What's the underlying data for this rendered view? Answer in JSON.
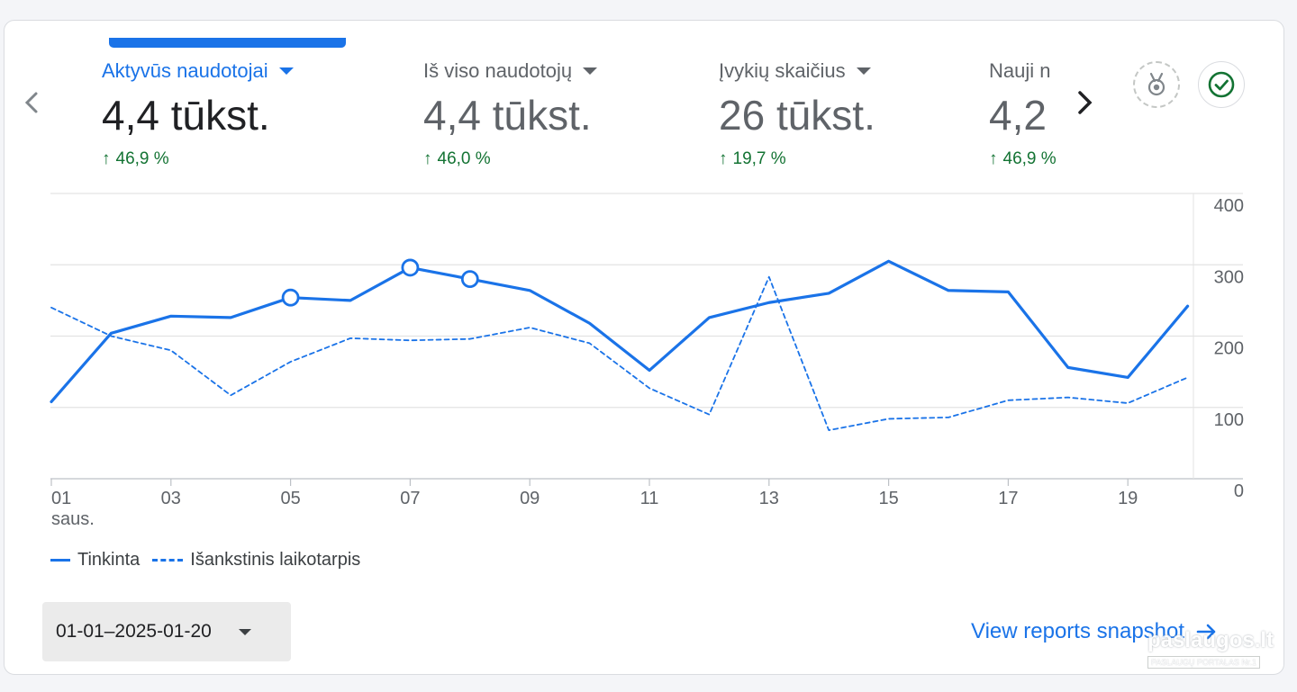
{
  "metrics": [
    {
      "label": "Aktyvūs naudotojai",
      "value": "4,4 tūkst.",
      "change": "46,9 %",
      "active": true
    },
    {
      "label": "Iš viso naudotojų",
      "value": "4,4 tūkst.",
      "change": "46,0 %",
      "active": false
    },
    {
      "label": "Įvykių skaičius",
      "value": "26 tūkst.",
      "change": "19,7 %",
      "active": false
    },
    {
      "label": "Nauji n",
      "value": "4,2",
      "change": "46,9 %",
      "active": false
    }
  ],
  "icons": {
    "prev": "chevron-left-icon",
    "next": "chevron-right-icon",
    "badge": "medal-badge-icon",
    "check": "check-circle-icon",
    "up_arrow": "arrow-up-icon",
    "link_arrow": "arrow-right-icon"
  },
  "chart_data": {
    "type": "line",
    "x_ticks": [
      "01",
      "03",
      "05",
      "07",
      "09",
      "11",
      "13",
      "15",
      "17",
      "19"
    ],
    "x_month": "saus.",
    "days": [
      1,
      2,
      3,
      4,
      5,
      6,
      7,
      8,
      9,
      10,
      11,
      12,
      13,
      14,
      15,
      16,
      17,
      18,
      19,
      20
    ],
    "y_ticks": [
      "400",
      "300",
      "200",
      "100",
      "0"
    ],
    "ylim": [
      0,
      400
    ],
    "grid": true,
    "series": [
      {
        "name": "Tinkinta",
        "style": "solid",
        "color": "#1a73e8",
        "values": [
          108,
          204,
          228,
          226,
          254,
          250,
          296,
          280,
          264,
          218,
          152,
          226,
          247,
          260,
          305,
          264,
          262,
          156,
          142,
          242
        ],
        "marked_days": [
          5,
          7,
          8
        ]
      },
      {
        "name": "Išankstinis laikotarpis",
        "style": "dashed",
        "color": "#1a73e8",
        "values": [
          240,
          200,
          180,
          117,
          164,
          197,
          194,
          196,
          212,
          190,
          127,
          90,
          283,
          68,
          84,
          86,
          110,
          114,
          106,
          142
        ]
      }
    ],
    "legend_position": "bottom-left"
  },
  "date_range": {
    "label": "01-01–2025-01-20"
  },
  "reports_link": {
    "label": "View reports snapshot"
  },
  "watermark": {
    "main": "paslaugos.lt",
    "sub": "PASLAUGŲ PORTALAS  Nr.1"
  }
}
